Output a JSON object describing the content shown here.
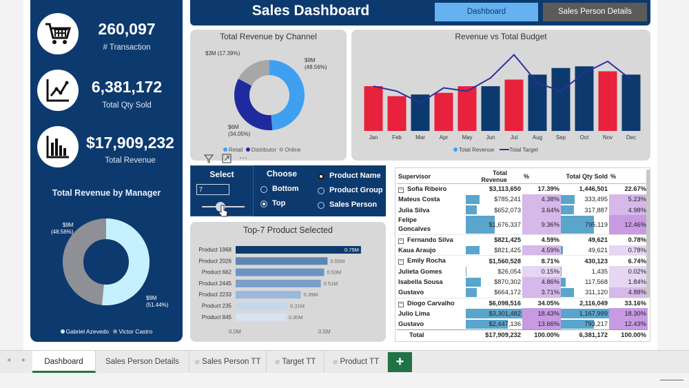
{
  "header": {
    "title": "Sales Dashboard",
    "btn_dashboard": "Dashboard",
    "btn_salesperson": "Sales Person Details"
  },
  "kpis": [
    {
      "value": "260,097",
      "label": "# Transaction",
      "icon": "cart-icon"
    },
    {
      "value": "6,381,172",
      "label": "Total Qty Sold",
      "icon": "line-chart-icon"
    },
    {
      "value": "$17,909,232",
      "label": "Total Revenue",
      "icon": "bar-chart-icon"
    }
  ],
  "manager_chart": {
    "title": "Total Revenue by Manager",
    "label_a": "$9M",
    "label_a_pct": "(48.56%)",
    "label_b": "$9M",
    "label_b_pct": "(51.44%)",
    "legend_a": "Gabriel Azevedo",
    "legend_b": "Victor Castro",
    "colors": {
      "a": "#8f8f96",
      "b": "#c7f0ff"
    }
  },
  "channel_chart": {
    "title": "Total Revenue by Channel",
    "label_gray": "$3M (17.39%)",
    "label_blue": "$9M",
    "label_blue_pct": "(48.56%)",
    "label_navy": "$6M",
    "label_navy_pct": "(34.05%)",
    "legend": [
      "Retail",
      "Distributor",
      "Online"
    ],
    "colors": [
      "#3fa0f2",
      "#1f2a9e",
      "#a7a7a7"
    ]
  },
  "budget_chart": {
    "title": "Revenue vs Total Budget",
    "legend_revenue": "Total Revenue",
    "legend_target": "Total Target"
  },
  "select": {
    "title": "Select",
    "value": "7"
  },
  "choose": {
    "title": "Choose",
    "bottom": "Bottom",
    "top": "Top",
    "product_name": "Product Name",
    "product_group": "Product Group",
    "sales_person": "Sales Person"
  },
  "top_chart": {
    "title": "Top-7 Product Selected",
    "axis_0": "0.0M",
    "axis_1": "0.5M"
  },
  "table": {
    "headers": [
      "Supervisor",
      "Total Revenue",
      "%",
      "Total Qty Sold",
      "%"
    ],
    "total": {
      "name": "Total",
      "rev": "$17,909,232",
      "pct": "100.00%",
      "qty": "6,381,172",
      "qpct": "100.00%"
    },
    "rows": [
      {
        "name": "Sofia Ribeiro",
        "rev": "$3,113,650",
        "pct": "17.39%",
        "qty": "1,446,501",
        "qpct": "22.67%",
        "group": true
      },
      {
        "name": "Mateus Costa",
        "rev": "$785,241",
        "pct": "4.38%",
        "qty": "333,495",
        "qpct": "5.23%"
      },
      {
        "name": "Julia Silva",
        "rev": "$652,073",
        "pct": "3.64%",
        "qty": "317,887",
        "qpct": "4.98%"
      },
      {
        "name": "Felipe Goncalves",
        "rev": "$1,676,337",
        "pct": "9.36%",
        "qty": "795,119",
        "qpct": "12.46%"
      },
      {
        "name": "Fernando Silva",
        "rev": "$821,425",
        "pct": "4.59%",
        "qty": "49,621",
        "qpct": "0.78%",
        "group": true
      },
      {
        "name": "Kaua Araujo",
        "rev": "$821,425",
        "pct": "4.59%",
        "qty": "49,621",
        "qpct": "0.78%"
      },
      {
        "name": "Emily Rocha",
        "rev": "$1,560,528",
        "pct": "8.71%",
        "qty": "430,123",
        "qpct": "6.74%",
        "group": true
      },
      {
        "name": "Julieta Gomes",
        "rev": "$26,054",
        "pct": "0.15%",
        "qty": "1,435",
        "qpct": "0.02%"
      },
      {
        "name": "Isabella Sousa",
        "rev": "$870,302",
        "pct": "4.86%",
        "qty": "117,568",
        "qpct": "1.84%"
      },
      {
        "name": "Gustavo",
        "rev": "$664,172",
        "pct": "3.71%",
        "qty": "311,120",
        "qpct": "4.88%"
      },
      {
        "name": "Diogo Carvalho",
        "rev": "$6,098,516",
        "pct": "34.05%",
        "qty": "2,116,049",
        "qpct": "33.16%",
        "group": true
      },
      {
        "name": "Julio Lima",
        "rev": "$3,301,482",
        "pct": "18.43%",
        "qty": "1,167,999",
        "qpct": "18.30%"
      },
      {
        "name": "Gustavo",
        "rev": "$2,447,136",
        "pct": "13.66%",
        "qty": "793,217",
        "qpct": "12.43%"
      }
    ]
  },
  "tabs": [
    "Dashboard",
    "Sales Person Details",
    "Sales Person TT",
    "Target TT",
    "Product TT"
  ],
  "chart_data": [
    {
      "type": "pie",
      "title": "Total Revenue by Channel",
      "categories": [
        "Retail",
        "Distributor",
        "Online"
      ],
      "values": [
        48.56,
        34.05,
        17.39
      ],
      "labels": [
        "$9M",
        "$6M",
        "$3M"
      ]
    },
    {
      "type": "bar",
      "title": "Revenue vs Total Budget",
      "categories": [
        "Jan",
        "Feb",
        "Mar",
        "Apr",
        "May",
        "Jun",
        "Jul",
        "Aug",
        "Sep",
        "Oct",
        "Nov",
        "Dec"
      ],
      "series": [
        {
          "name": "Total Revenue",
          "values": [
            1.35,
            1.05,
            1.1,
            1.15,
            1.35,
            1.35,
            1.55,
            1.7,
            1.9,
            1.95,
            1.8,
            1.7
          ],
          "colors": [
            "#e8213c",
            "#e8213c",
            "#0d3a6e",
            "#e8213c",
            "#e8213c",
            "#0d3a6e",
            "#e8213c",
            "#0d3a6e",
            "#0d3a6e",
            "#0d3a6e",
            "#e8213c",
            "#0d3a6e"
          ]
        },
        {
          "name": "Total Target",
          "type": "line",
          "values": [
            1.35,
            1.2,
            0.85,
            1.3,
            1.2,
            1.6,
            2.3,
            1.45,
            1.2,
            1.75,
            2.1,
            1.55
          ]
        }
      ],
      "ylim": [
        0,
        2.6
      ]
    },
    {
      "type": "pie",
      "title": "Total Revenue by Manager",
      "categories": [
        "Gabriel Azevedo",
        "Victor Castro"
      ],
      "values": [
        48.56,
        51.44
      ],
      "labels": [
        "$9M",
        "$9M"
      ]
    },
    {
      "type": "bar",
      "title": "Top-7 Product Selected",
      "categories": [
        "Product 1968",
        "Product 2026",
        "Product 662",
        "Product 2445",
        "Product 2233",
        "Product 235",
        "Product 845"
      ],
      "values": [
        0.75,
        0.55,
        0.53,
        0.51,
        0.39,
        0.31,
        0.3
      ],
      "labels": [
        "0.75M",
        "0.55M",
        "0.53M",
        "0.51M",
        "0.39M",
        "0.31M",
        "0.30M"
      ],
      "xlim": [
        0,
        0.8
      ]
    }
  ]
}
